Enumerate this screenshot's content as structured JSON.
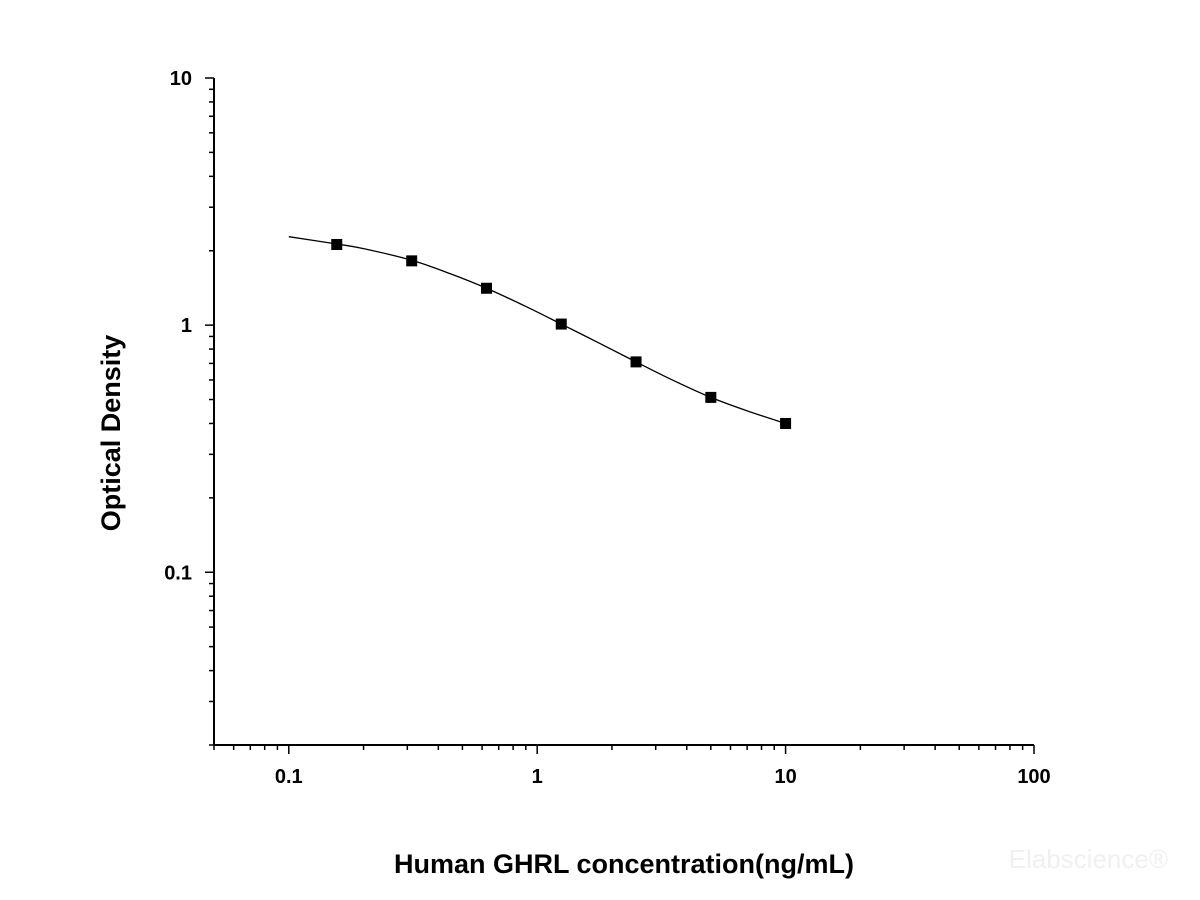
{
  "chart_data": {
    "type": "scatter",
    "title": "",
    "xlabel": "Human GHRL concentration(ng/mL)",
    "ylabel": "Optical Density",
    "x_scale": "log",
    "y_scale": "log",
    "xlim": [
      0.05,
      100
    ],
    "ylim": [
      0.02,
      10
    ],
    "x_ticks": [
      {
        "value": 0.1,
        "label": "0.1"
      },
      {
        "value": 1,
        "label": "1"
      },
      {
        "value": 10,
        "label": "10"
      },
      {
        "value": 100,
        "label": "100"
      }
    ],
    "y_ticks": [
      {
        "value": 10,
        "label": "10"
      },
      {
        "value": 1,
        "label": "1"
      },
      {
        "value": 0.1,
        "label": "0.1"
      }
    ],
    "grid": false,
    "legend": "none",
    "series": [
      {
        "marker": "square",
        "color": "#000000",
        "points": [
          {
            "x": 0.156,
            "y": 2.12
          },
          {
            "x": 0.3125,
            "y": 1.82
          },
          {
            "x": 0.625,
            "y": 1.41
          },
          {
            "x": 1.25,
            "y": 1.01
          },
          {
            "x": 2.5,
            "y": 0.71
          },
          {
            "x": 5,
            "y": 0.51
          },
          {
            "x": 10,
            "y": 0.4
          }
        ]
      }
    ],
    "fit_curve": {
      "color": "#000000",
      "points": [
        {
          "x": 0.1,
          "y": 2.28
        },
        {
          "x": 0.156,
          "y": 2.13
        },
        {
          "x": 0.2,
          "y": 2.04
        },
        {
          "x": 0.3125,
          "y": 1.83
        },
        {
          "x": 0.45,
          "y": 1.61
        },
        {
          "x": 0.625,
          "y": 1.41
        },
        {
          "x": 0.9,
          "y": 1.19
        },
        {
          "x": 1.25,
          "y": 1.01
        },
        {
          "x": 1.8,
          "y": 0.84
        },
        {
          "x": 2.5,
          "y": 0.71
        },
        {
          "x": 3.5,
          "y": 0.6
        },
        {
          "x": 5,
          "y": 0.51
        },
        {
          "x": 7,
          "y": 0.45
        },
        {
          "x": 10,
          "y": 0.4
        }
      ]
    }
  },
  "watermark": "Elabscience®"
}
